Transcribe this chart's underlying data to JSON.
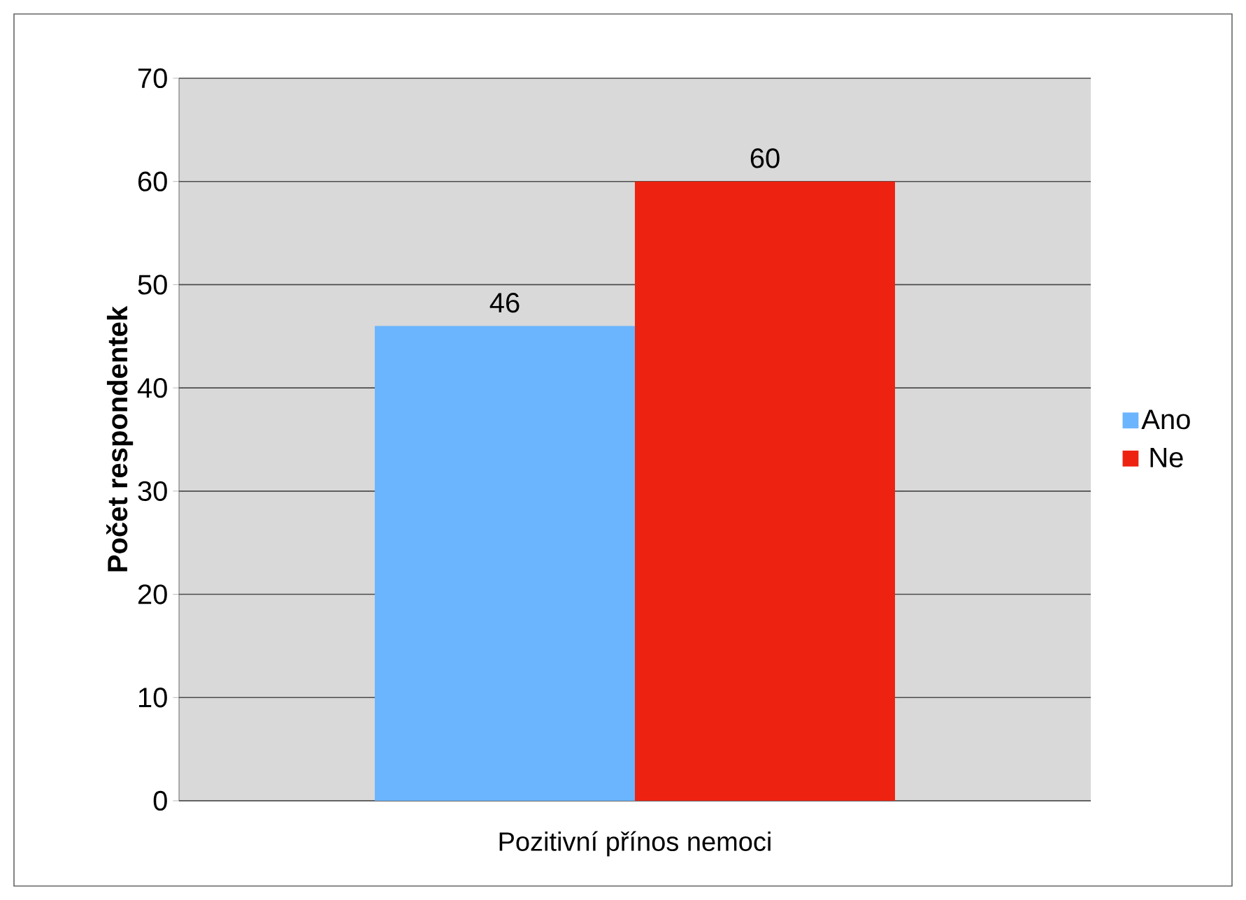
{
  "chart_data": {
    "type": "bar",
    "ylabel": "Počet respondentek",
    "categories": [
      "Pozitivní přínos nemoci"
    ],
    "series": [
      {
        "name": "Ano",
        "color": "#6bb5ff",
        "values": [
          46
        ]
      },
      {
        "name": "Ne",
        "color": "#ee2211",
        "values": [
          60
        ]
      }
    ],
    "ylim": [
      0,
      70
    ],
    "yticks": [
      0,
      10,
      20,
      30,
      40,
      50,
      60,
      70
    ],
    "grid": "y",
    "legend": "right",
    "data_labels": true
  }
}
